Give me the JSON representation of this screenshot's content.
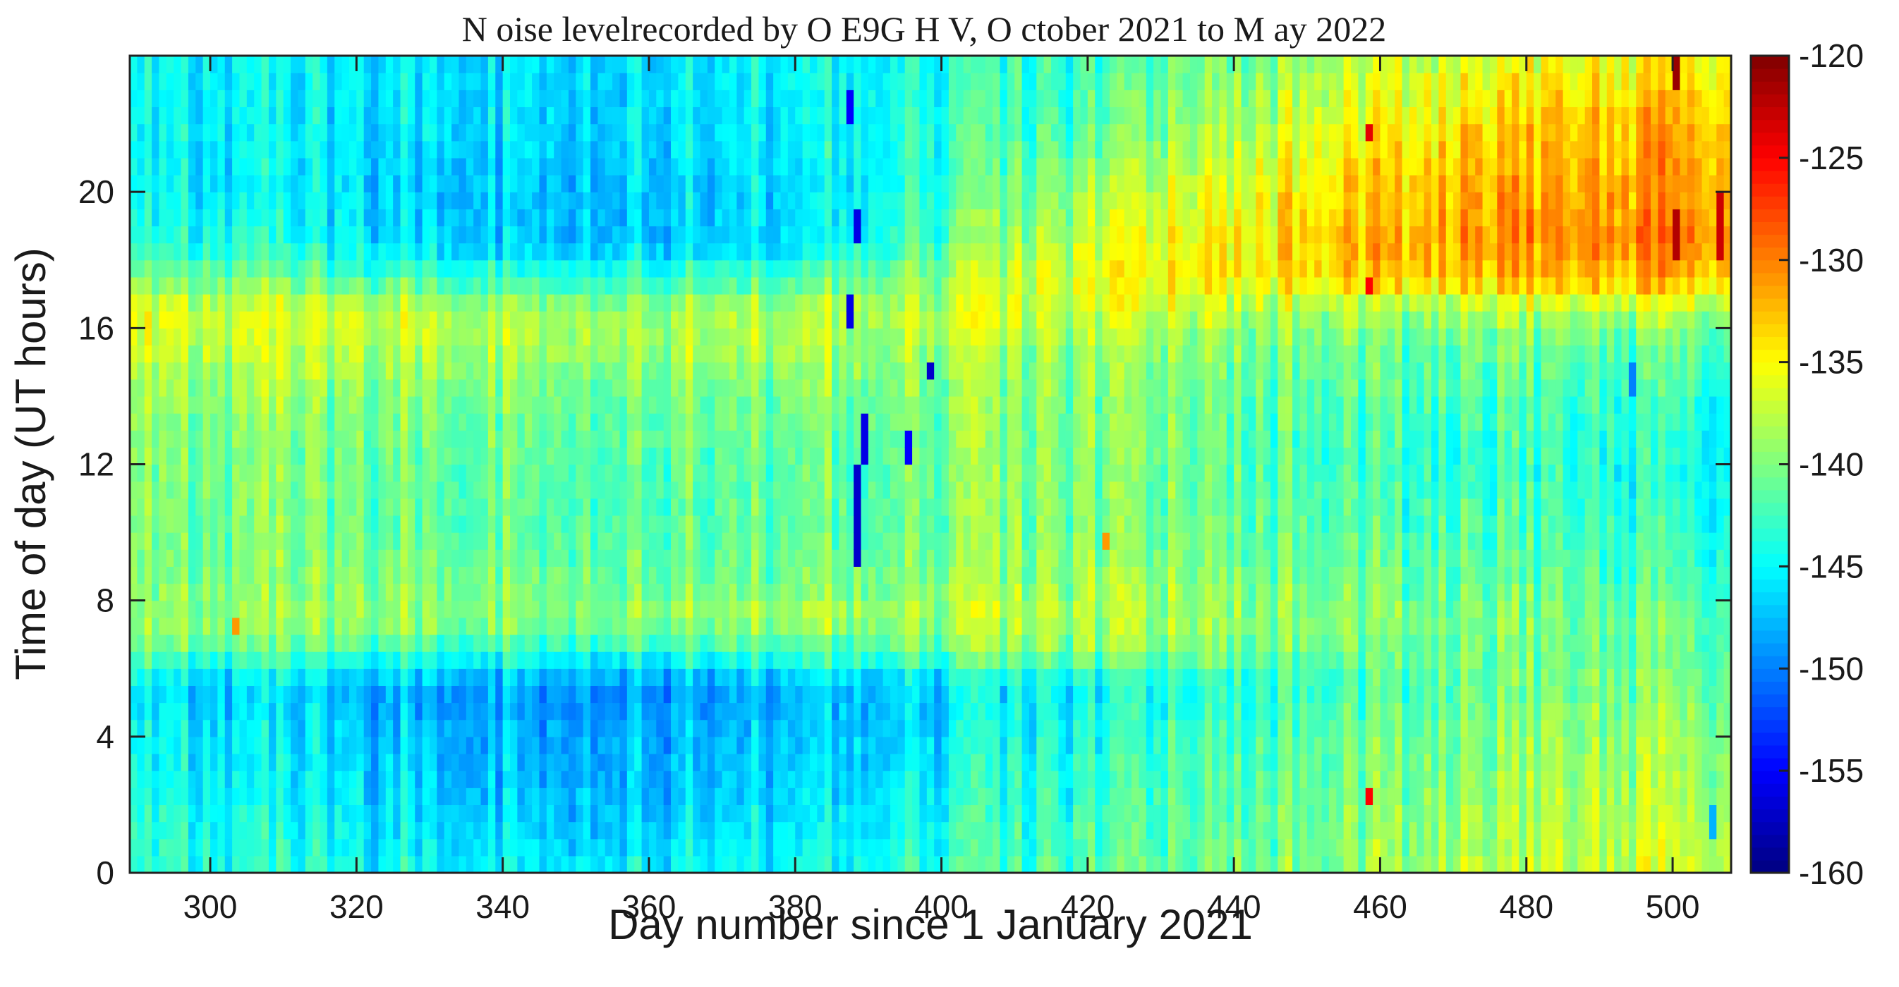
{
  "chart_data": {
    "type": "heatmap",
    "title": "N oise  levelrecorded by O E9G H V, O ctober 2021 to M ay 2022",
    "xlabel": "Day number since 1 January 2021",
    "ylabel": "Time of day (UT hours)",
    "xlim": [
      289,
      508
    ],
    "ylim": [
      0,
      24
    ],
    "x_ticks": [
      300,
      320,
      340,
      360,
      380,
      400,
      420,
      440,
      460,
      480,
      500
    ],
    "y_ticks": [
      0,
      4,
      8,
      12,
      16,
      20
    ],
    "grid": false,
    "colormap": "jet",
    "colorbar": {
      "range": [
        -160,
        -120
      ],
      "ticks": [
        -160,
        -155,
        -150,
        -145,
        -140,
        -135,
        -130,
        -125,
        -120
      ],
      "location": "right"
    },
    "noise_level_profiles": {
      "hours": [
        0,
        2,
        4,
        5.5,
        6.5,
        7.5,
        8.5,
        10,
        12,
        14,
        15.5,
        16.5,
        17.5,
        18.5,
        20,
        22,
        24
      ],
      "by_day": [
        {
          "day": 290,
          "values": [
            -143,
            -144,
            -145,
            -146,
            -141,
            -139,
            -140,
            -140,
            -140,
            -139,
            -137,
            -136,
            -140,
            -143,
            -145,
            -145,
            -145
          ]
        },
        {
          "day": 340,
          "values": [
            -145,
            -147,
            -148,
            -149,
            -143,
            -139,
            -140,
            -141,
            -141,
            -140,
            -138,
            -138,
            -143,
            -147,
            -147,
            -146,
            -146
          ]
        },
        {
          "day": 380,
          "values": [
            -144,
            -146,
            -147,
            -148,
            -142,
            -138,
            -140,
            -141,
            -141,
            -140,
            -138,
            -138,
            -142,
            -146,
            -146,
            -145,
            -145
          ]
        },
        {
          "day": 420,
          "values": [
            -142,
            -143,
            -144,
            -145,
            -140,
            -138,
            -139,
            -140,
            -140,
            -140,
            -139,
            -137,
            -136,
            -137,
            -139,
            -142,
            -143
          ]
        },
        {
          "day": 460,
          "values": [
            -139,
            -140,
            -141,
            -142,
            -141,
            -140,
            -141,
            -142,
            -143,
            -142,
            -141,
            -139,
            -133,
            -132,
            -133,
            -135,
            -138
          ]
        },
        {
          "day": 500,
          "values": [
            -137,
            -138,
            -139,
            -140,
            -141,
            -141,
            -142,
            -143,
            -144,
            -143,
            -141,
            -138,
            -132,
            -130,
            -131,
            -132,
            -135
          ]
        }
      ]
    },
    "anomalies": [
      {
        "day": 388,
        "hour_from": 9,
        "hour_to": 12,
        "value": -157
      },
      {
        "day": 389,
        "hour_from": 12,
        "hour_to": 13.5,
        "value": -156
      },
      {
        "day": 387,
        "hour_from": 16,
        "hour_to": 17.2,
        "value": -156
      },
      {
        "day": 388,
        "hour_from": 18.5,
        "hour_to": 19.3,
        "value": -156
      },
      {
        "day": 387,
        "hour_from": 22,
        "hour_to": 22.8,
        "value": -155
      },
      {
        "day": 398,
        "hour_from": 14.7,
        "hour_to": 15.1,
        "value": -157
      },
      {
        "day": 395,
        "hour_from": 12,
        "hour_to": 13.2,
        "value": -155
      },
      {
        "day": 458,
        "hour_from": 21.5,
        "hour_to": 22,
        "value": -124
      },
      {
        "day": 458,
        "hour_from": 1.9,
        "hour_to": 2.3,
        "value": -125
      },
      {
        "day": 458,
        "hour_from": 17.2,
        "hour_to": 17.6,
        "value": -125
      },
      {
        "day": 500,
        "hour_from": 22.8,
        "hour_to": 24,
        "value": -121
      },
      {
        "day": 500,
        "hour_from": 18,
        "hour_to": 19.5,
        "value": -122
      },
      {
        "day": 506,
        "hour_from": 18,
        "hour_to": 20,
        "value": -123
      },
      {
        "day": 422,
        "hour_from": 9.5,
        "hour_to": 10.2,
        "value": -131
      },
      {
        "day": 303,
        "hour_from": 6.8,
        "hour_to": 7.3,
        "value": -131
      },
      {
        "day": 505,
        "hour_from": 1,
        "hour_to": 2,
        "value": -148
      },
      {
        "day": 494,
        "hour_from": 13.8,
        "hour_to": 14.8,
        "value": -150
      }
    ]
  }
}
